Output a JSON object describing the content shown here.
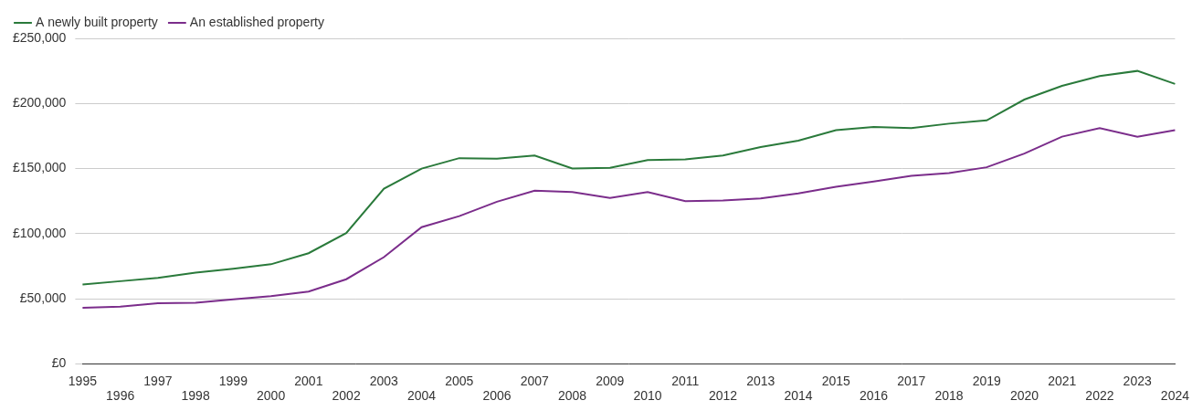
{
  "chart_data": {
    "type": "line",
    "categories": [
      "1995",
      "1996",
      "1997",
      "1998",
      "1999",
      "2000",
      "2001",
      "2002",
      "2003",
      "2004",
      "2005",
      "2006",
      "2007",
      "2008",
      "2009",
      "2010",
      "2011",
      "2012",
      "2013",
      "2014",
      "2015",
      "2016",
      "2017",
      "2018",
      "2019",
      "2020",
      "2021",
      "2022",
      "2023",
      "2024"
    ],
    "series": [
      {
        "name": "A newly built property",
        "color": "#2a7a3b",
        "values": [
          61000,
          63500,
          66000,
          70000,
          73000,
          76500,
          85000,
          100500,
          134500,
          150000,
          158000,
          157500,
          160000,
          150000,
          150500,
          156500,
          157000,
          160000,
          166500,
          171500,
          179500,
          182000,
          181000,
          184500,
          187000,
          203000,
          213500,
          221000,
          225000,
          215000
        ]
      },
      {
        "name": "An established property",
        "color": "#7b2d8b",
        "values": [
          43000,
          44000,
          46500,
          47000,
          49500,
          52000,
          55500,
          65000,
          82000,
          105000,
          113500,
          124500,
          133000,
          132000,
          127500,
          132000,
          125000,
          125500,
          127000,
          131000,
          136000,
          140000,
          144500,
          146500,
          151000,
          161500,
          174500,
          181000,
          174500,
          179500
        ]
      }
    ],
    "ylim": [
      0,
      250000
    ],
    "yticks": [
      {
        "value": 0,
        "label": "£0"
      },
      {
        "value": 50000,
        "label": "£50,000"
      },
      {
        "value": 100000,
        "label": "£100,000"
      },
      {
        "value": 150000,
        "label": "£150,000"
      },
      {
        "value": 200000,
        "label": "£200,000"
      },
      {
        "value": 250000,
        "label": "£250,000"
      }
    ],
    "grid": true,
    "legend": "top-left"
  }
}
